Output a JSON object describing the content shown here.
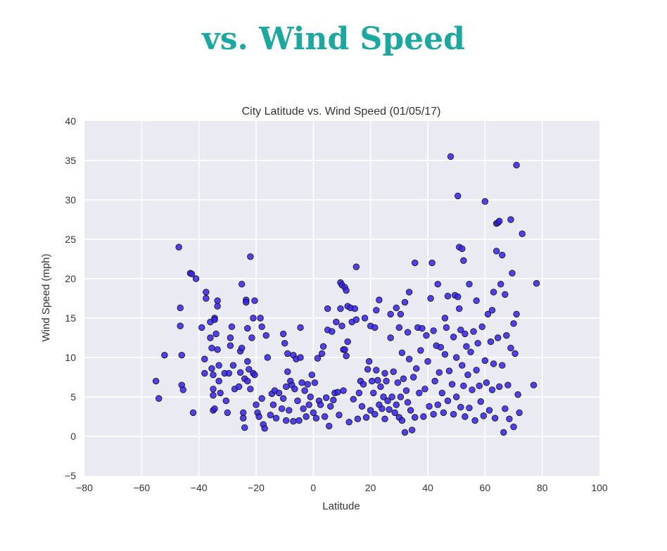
{
  "header": {
    "title": "vs. Wind Speed"
  },
  "chart_data": {
    "type": "scatter",
    "title": "City Latitude vs. Wind Speed (01/05/17)",
    "xlabel": "Latitude",
    "ylabel": "Wind Speed (mph)",
    "xlim": [
      -80,
      100
    ],
    "ylim": [
      -5,
      40
    ],
    "xticks": [
      "−80",
      "−60",
      "−40",
      "−20",
      "0",
      "20",
      "40",
      "60",
      "80",
      "100"
    ],
    "yticks": [
      "−5",
      "0",
      "5",
      "10",
      "15",
      "20",
      "25",
      "30",
      "35",
      "40"
    ],
    "grid": true,
    "colors": {
      "plot_bg": "#eaeaf2",
      "grid": "#ffffff",
      "marker": "#3322ee",
      "marker_edge": "#111111"
    },
    "points": [
      [
        -55,
        7
      ],
      [
        -54,
        4.8
      ],
      [
        -52,
        10.3
      ],
      [
        -47,
        24
      ],
      [
        -46.5,
        16.3
      ],
      [
        -46.5,
        14
      ],
      [
        -46,
        10.3
      ],
      [
        -46,
        6.5
      ],
      [
        -45.5,
        5.9
      ],
      [
        -43,
        20.7
      ],
      [
        -42.5,
        20.6
      ],
      [
        -42,
        3
      ],
      [
        -41,
        20
      ],
      [
        -39,
        13.8
      ],
      [
        -38,
        8
      ],
      [
        -38,
        9.8
      ],
      [
        -37.5,
        17.5
      ],
      [
        -37.5,
        18.3
      ],
      [
        -36,
        14.5
      ],
      [
        -36,
        12.5
      ],
      [
        -35.5,
        11.2
      ],
      [
        -35.5,
        8.6
      ],
      [
        -35,
        7.8
      ],
      [
        -35,
        6
      ],
      [
        -35,
        5.2
      ],
      [
        -35,
        3.3
      ],
      [
        -34.5,
        3.5
      ],
      [
        -34.5,
        15
      ],
      [
        -34.5,
        14.8
      ],
      [
        -34,
        13
      ],
      [
        -33.5,
        17.2
      ],
      [
        -33.5,
        16.5
      ],
      [
        -33.5,
        11
      ],
      [
        -33,
        9
      ],
      [
        -33,
        7
      ],
      [
        -32.5,
        5.5
      ],
      [
        -31,
        8
      ],
      [
        -30.5,
        4.5
      ],
      [
        -30,
        3
      ],
      [
        -29.5,
        8
      ],
      [
        -29,
        12.5
      ],
      [
        -29,
        11.5
      ],
      [
        -28.5,
        13.9
      ],
      [
        -28,
        9
      ],
      [
        -27.5,
        6
      ],
      [
        -26,
        6.3
      ],
      [
        -25.5,
        10.8
      ],
      [
        -25.5,
        8.1
      ],
      [
        -25,
        19.3
      ],
      [
        -25,
        11.2
      ],
      [
        -24.5,
        3
      ],
      [
        -24.5,
        2.3
      ],
      [
        -24,
        7.3
      ],
      [
        -24,
        1.1
      ],
      [
        -23.5,
        17.3
      ],
      [
        -23.5,
        17
      ],
      [
        -23,
        13.7
      ],
      [
        -23,
        9.5
      ],
      [
        -23,
        7
      ],
      [
        -22.5,
        8.5
      ],
      [
        -22,
        22.8
      ],
      [
        -22,
        6
      ],
      [
        -21.5,
        12.5
      ],
      [
        -21,
        15
      ],
      [
        -21,
        8
      ],
      [
        -20.5,
        17.2
      ],
      [
        -20.5,
        7.8
      ],
      [
        -20,
        4
      ],
      [
        -19.5,
        3
      ],
      [
        -19,
        2.5
      ],
      [
        -18.5,
        15
      ],
      [
        -18,
        13.9
      ],
      [
        -18,
        4.8
      ],
      [
        -17.5,
        1.5
      ],
      [
        -17,
        1
      ],
      [
        -16.5,
        12.8
      ],
      [
        -16,
        10
      ],
      [
        -15,
        2.7
      ],
      [
        -14.5,
        5.4
      ],
      [
        -14,
        4
      ],
      [
        -13.5,
        5.8
      ],
      [
        -13,
        2.3
      ],
      [
        -12,
        5.5
      ],
      [
        -11,
        3.5
      ],
      [
        -10.5,
        13
      ],
      [
        -10.5,
        4.8
      ],
      [
        -10,
        11.8
      ],
      [
        -9.5,
        6.3
      ],
      [
        -9.5,
        2
      ],
      [
        -9,
        10.5
      ],
      [
        -9,
        8.2
      ],
      [
        -8.5,
        3.3
      ],
      [
        -8,
        7
      ],
      [
        -7.5,
        6.5
      ],
      [
        -7,
        10.3
      ],
      [
        -7,
        1.9
      ],
      [
        -6.5,
        6
      ],
      [
        -6,
        9.8
      ],
      [
        -5.5,
        4.5
      ],
      [
        -5,
        2
      ],
      [
        -4.5,
        10
      ],
      [
        -4.5,
        13.8
      ],
      [
        -4,
        6.8
      ],
      [
        -3.5,
        3.5
      ],
      [
        -3,
        5.8
      ],
      [
        -2.5,
        2.5
      ],
      [
        -2,
        6.6
      ],
      [
        -1.5,
        4
      ],
      [
        -1,
        5
      ],
      [
        -0.5,
        7.8
      ],
      [
        0,
        3
      ],
      [
        0.5,
        6.8
      ],
      [
        1,
        2.3
      ],
      [
        1.5,
        9.9
      ],
      [
        2,
        4.5
      ],
      [
        2.5,
        4
      ],
      [
        3,
        10.5
      ],
      [
        3.5,
        11.4
      ],
      [
        4,
        2.5
      ],
      [
        4.5,
        4.9
      ],
      [
        5,
        16.2
      ],
      [
        5,
        13.5
      ],
      [
        5.5,
        1.3
      ],
      [
        6,
        3.8
      ],
      [
        6.5,
        13.3
      ],
      [
        7,
        4.6
      ],
      [
        7.5,
        5.5
      ],
      [
        8,
        14.5
      ],
      [
        8.5,
        5.6
      ],
      [
        9,
        2.7
      ],
      [
        9.5,
        19.5
      ],
      [
        9.5,
        16.2
      ],
      [
        10,
        19.2
      ],
      [
        10,
        14
      ],
      [
        10.5,
        11
      ],
      [
        10.5,
        5.8
      ],
      [
        11,
        18.9
      ],
      [
        11,
        11
      ],
      [
        11.5,
        18.5
      ],
      [
        11.5,
        10.2
      ],
      [
        12,
        16.5
      ],
      [
        12,
        12
      ],
      [
        12.5,
        1.8
      ],
      [
        13,
        16.3
      ],
      [
        13.5,
        14.5
      ],
      [
        14,
        4.7
      ],
      [
        14.5,
        16.2
      ],
      [
        15,
        21.5
      ],
      [
        15,
        14.8
      ],
      [
        15.5,
        2.2
      ],
      [
        16,
        5.5
      ],
      [
        16.5,
        7
      ],
      [
        17,
        3.8
      ],
      [
        17.5,
        6.6
      ],
      [
        18,
        15
      ],
      [
        18.5,
        2.4
      ],
      [
        19,
        8.5
      ],
      [
        19.5,
        9.5
      ],
      [
        20,
        14
      ],
      [
        20,
        3.3
      ],
      [
        20.5,
        7
      ],
      [
        21,
        5.5
      ],
      [
        21.5,
        13.8
      ],
      [
        21.5,
        2.8
      ],
      [
        22,
        16
      ],
      [
        22,
        8.4
      ],
      [
        22.5,
        7.1
      ],
      [
        23,
        17.3
      ],
      [
        23,
        4
      ],
      [
        23.5,
        6.3
      ],
      [
        24,
        3.5
      ],
      [
        24.5,
        5
      ],
      [
        25,
        8
      ],
      [
        25,
        2.2
      ],
      [
        25.5,
        7
      ],
      [
        26,
        4.5
      ],
      [
        26.5,
        3.4
      ],
      [
        27,
        15.5
      ],
      [
        27,
        12.5
      ],
      [
        27.5,
        5
      ],
      [
        28,
        8.2
      ],
      [
        28.5,
        3
      ],
      [
        29,
        16.3
      ],
      [
        29,
        4
      ],
      [
        29.5,
        6.8
      ],
      [
        30,
        13.8
      ],
      [
        30,
        2.4
      ],
      [
        30.5,
        15.5
      ],
      [
        30.5,
        5
      ],
      [
        31,
        10.6
      ],
      [
        31,
        2
      ],
      [
        31.5,
        7.3
      ],
      [
        32,
        17
      ],
      [
        32,
        0.5
      ],
      [
        32.5,
        5.8
      ],
      [
        33,
        13.2
      ],
      [
        33,
        4.3
      ],
      [
        33.5,
        18.3
      ],
      [
        33.5,
        9.8
      ],
      [
        34,
        3.3
      ],
      [
        34.5,
        0.8
      ],
      [
        35,
        7.5
      ],
      [
        35.5,
        22
      ],
      [
        35.5,
        2.4
      ],
      [
        36,
        8.6
      ],
      [
        36.5,
        13.8
      ],
      [
        37,
        5.5
      ],
      [
        37.5,
        10.9
      ],
      [
        38,
        13.7
      ],
      [
        38.5,
        2.5
      ],
      [
        39,
        6
      ],
      [
        39.5,
        12.8
      ],
      [
        40,
        9.5
      ],
      [
        40.5,
        3.8
      ],
      [
        41,
        17.5
      ],
      [
        41.5,
        22
      ],
      [
        42,
        13.4
      ],
      [
        42,
        2.8
      ],
      [
        42.5,
        7
      ],
      [
        43,
        11.5
      ],
      [
        43.5,
        19.3
      ],
      [
        43.5,
        4
      ],
      [
        44,
        8.1
      ],
      [
        44.5,
        11.3
      ],
      [
        45,
        5.5
      ],
      [
        45.5,
        3
      ],
      [
        46,
        15
      ],
      [
        46,
        10.4
      ],
      [
        46.5,
        13.8
      ],
      [
        47,
        17.8
      ],
      [
        47,
        4.5
      ],
      [
        47.5,
        8.3
      ],
      [
        48,
        35.5
      ],
      [
        48.5,
        6.6
      ],
      [
        49,
        12.6
      ],
      [
        49,
        2.8
      ],
      [
        49.5,
        17.9
      ],
      [
        50,
        10
      ],
      [
        50,
        5
      ],
      [
        50.5,
        30.5
      ],
      [
        50.5,
        17.7
      ],
      [
        51,
        24
      ],
      [
        51,
        16.2
      ],
      [
        51.5,
        13.5
      ],
      [
        51.5,
        3.7
      ],
      [
        52,
        23.8
      ],
      [
        52,
        9
      ],
      [
        52.5,
        22.3
      ],
      [
        52.5,
        6.4
      ],
      [
        53,
        13
      ],
      [
        53,
        2.5
      ],
      [
        53.5,
        11.4
      ],
      [
        54,
        7.8
      ],
      [
        54.5,
        19.3
      ],
      [
        54.5,
        3.6
      ],
      [
        55,
        10.7
      ],
      [
        55.5,
        5.9
      ],
      [
        56,
        13.3
      ],
      [
        56.5,
        2
      ],
      [
        57,
        17.2
      ],
      [
        57,
        8.4
      ],
      [
        57.5,
        11.8
      ],
      [
        58,
        6.4
      ],
      [
        58.5,
        4.4
      ],
      [
        59,
        13.9
      ],
      [
        59.5,
        2.6
      ],
      [
        60,
        29.8
      ],
      [
        60,
        9.6
      ],
      [
        60.5,
        6.8
      ],
      [
        61,
        15.5
      ],
      [
        61.5,
        3.3
      ],
      [
        62,
        12
      ],
      [
        62.5,
        16
      ],
      [
        62.5,
        5.9
      ],
      [
        63,
        18.3
      ],
      [
        63,
        9.2
      ],
      [
        63.5,
        2.3
      ],
      [
        64,
        27
      ],
      [
        64,
        23.5
      ],
      [
        64.5,
        27.1
      ],
      [
        64.5,
        12.5
      ],
      [
        65,
        27.3
      ],
      [
        65,
        6.3
      ],
      [
        65.5,
        19.3
      ],
      [
        66,
        23
      ],
      [
        66,
        9
      ],
      [
        66.5,
        0.5
      ],
      [
        67,
        18
      ],
      [
        67,
        3.5
      ],
      [
        67.5,
        12.8
      ],
      [
        68,
        6.5
      ],
      [
        68.5,
        2.2
      ],
      [
        69,
        27.5
      ],
      [
        69,
        11.2
      ],
      [
        69.5,
        20.7
      ],
      [
        70,
        14.3
      ],
      [
        70,
        1.2
      ],
      [
        70.5,
        10.5
      ],
      [
        71,
        34.4
      ],
      [
        71,
        15.5
      ],
      [
        71.5,
        5.3
      ],
      [
        72,
        3
      ],
      [
        73,
        25.7
      ],
      [
        77,
        6.5
      ],
      [
        78,
        19.4
      ]
    ]
  }
}
